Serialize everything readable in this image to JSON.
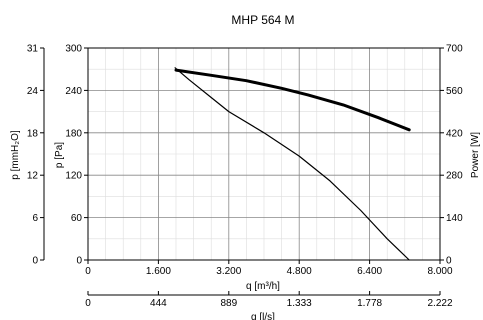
{
  "chart_data": {
    "type": "line",
    "title": "MHP 564 M",
    "xlabel": "q [m³/h]",
    "xlabel2": "q [l/s]",
    "ylabel_left_outer": "p [mmH₂O]",
    "ylabel_left_inner": "p [Pa]",
    "ylabel_right": "Power [W]",
    "xlim": [
      0,
      8000
    ],
    "ylim": [
      0,
      300
    ],
    "ylim_right": [
      0,
      700
    ],
    "ylim_mmH2O": [
      0,
      31
    ],
    "grid": true,
    "x_ticks": [
      "0",
      "1.600",
      "3.200",
      "4.800",
      "6.400",
      "8.000"
    ],
    "x2_ticks": [
      "0",
      "444",
      "889",
      "1.333",
      "1.778",
      "2.222"
    ],
    "y_ticks_pa": [
      "0",
      "60",
      "120",
      "180",
      "240",
      "300"
    ],
    "y_ticks_mmh2o": [
      "0",
      "6",
      "12",
      "18",
      "24",
      "31"
    ],
    "y_ticks_power": [
      "0",
      "140",
      "280",
      "420",
      "560",
      "700"
    ],
    "series": [
      {
        "axis": "left",
        "x": [
          1980,
          2300,
          2800,
          3200,
          4000,
          4800,
          5500,
          6200,
          6800,
          7300
        ],
        "y": [
          272,
          255,
          230,
          210,
          180,
          147,
          112,
          70,
          30,
          0
        ]
      },
      {
        "axis": "right",
        "x": [
          2000,
          2800,
          3600,
          4400,
          5000,
          5800,
          6600,
          7300
        ],
        "y": [
          627,
          610,
          592,
          567,
          545,
          512,
          470,
          430
        ]
      }
    ]
  }
}
